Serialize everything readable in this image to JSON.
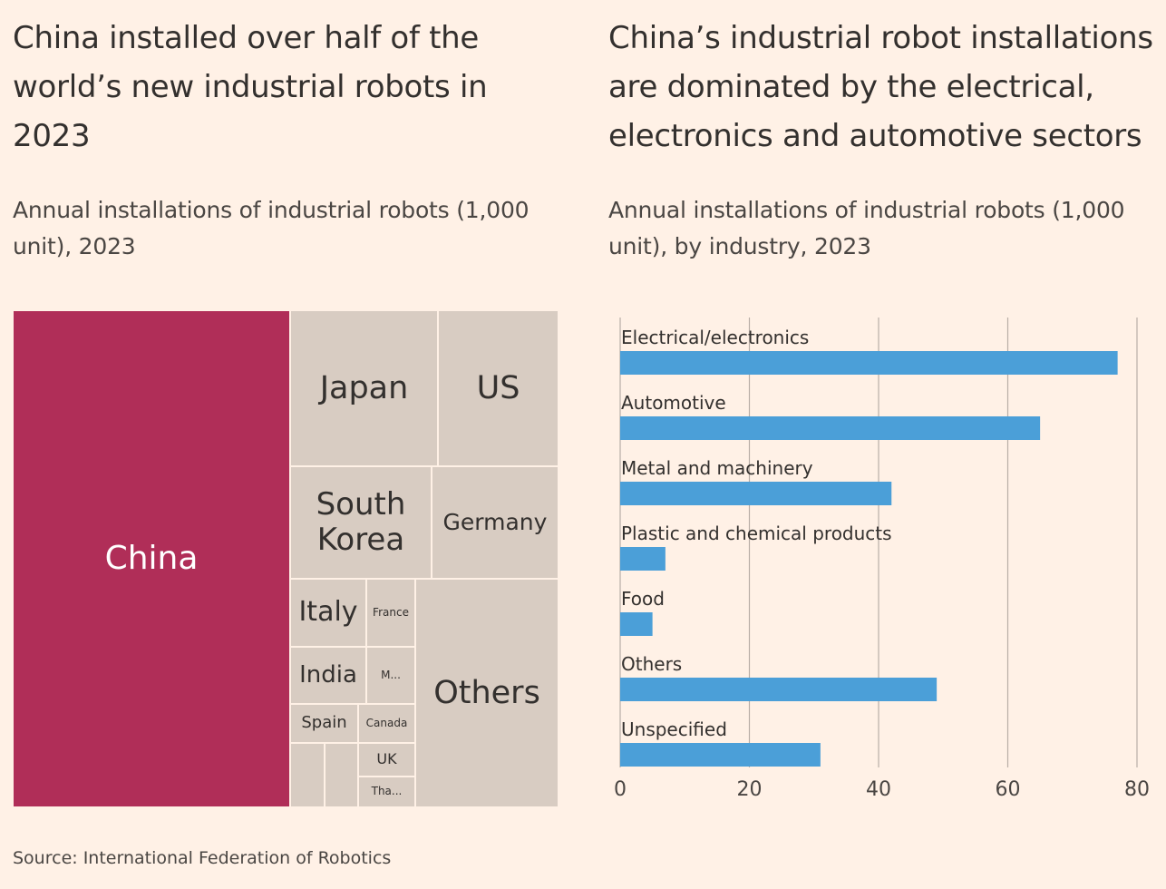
{
  "left": {
    "title": "China installed over half of the world’s new industrial robots in 2023",
    "subtitle": "Annual installations of industrial robots (1,000 unit), 2023"
  },
  "right": {
    "title": "China’s industrial robot installations are dominated by the electrical, electronics and automotive sectors",
    "subtitle": "Annual installations of industrial robots (1,000 unit), by industry, 2023"
  },
  "source": "Source: International Federation of Robotics",
  "colors": {
    "background": "#fff1e6",
    "china": "#b02e58",
    "other_countries": "#d8ccc2",
    "bar": "#4b9fd8",
    "gridline": "#b8aea6"
  },
  "chart_data": [
    {
      "type": "treemap",
      "labels": [
        "China",
        "Japan",
        "US",
        "South Korea",
        "Germany",
        "Italy",
        "France",
        "India",
        "M...",
        "Spain",
        "Canada",
        "UK",
        "Tha...",
        "Others"
      ]
    },
    {
      "type": "bar",
      "orientation": "horizontal",
      "categories": [
        "Electrical/electronics",
        "Automotive",
        "Metal and machinery",
        "Plastic and chemical products",
        "Food",
        "Others",
        "Unspecified"
      ],
      "values": [
        77,
        65,
        42,
        7,
        5,
        49,
        31
      ],
      "xlim": [
        0,
        80
      ],
      "xticks": [
        "0",
        "20",
        "40",
        "60",
        "80"
      ],
      "grid": true
    }
  ]
}
